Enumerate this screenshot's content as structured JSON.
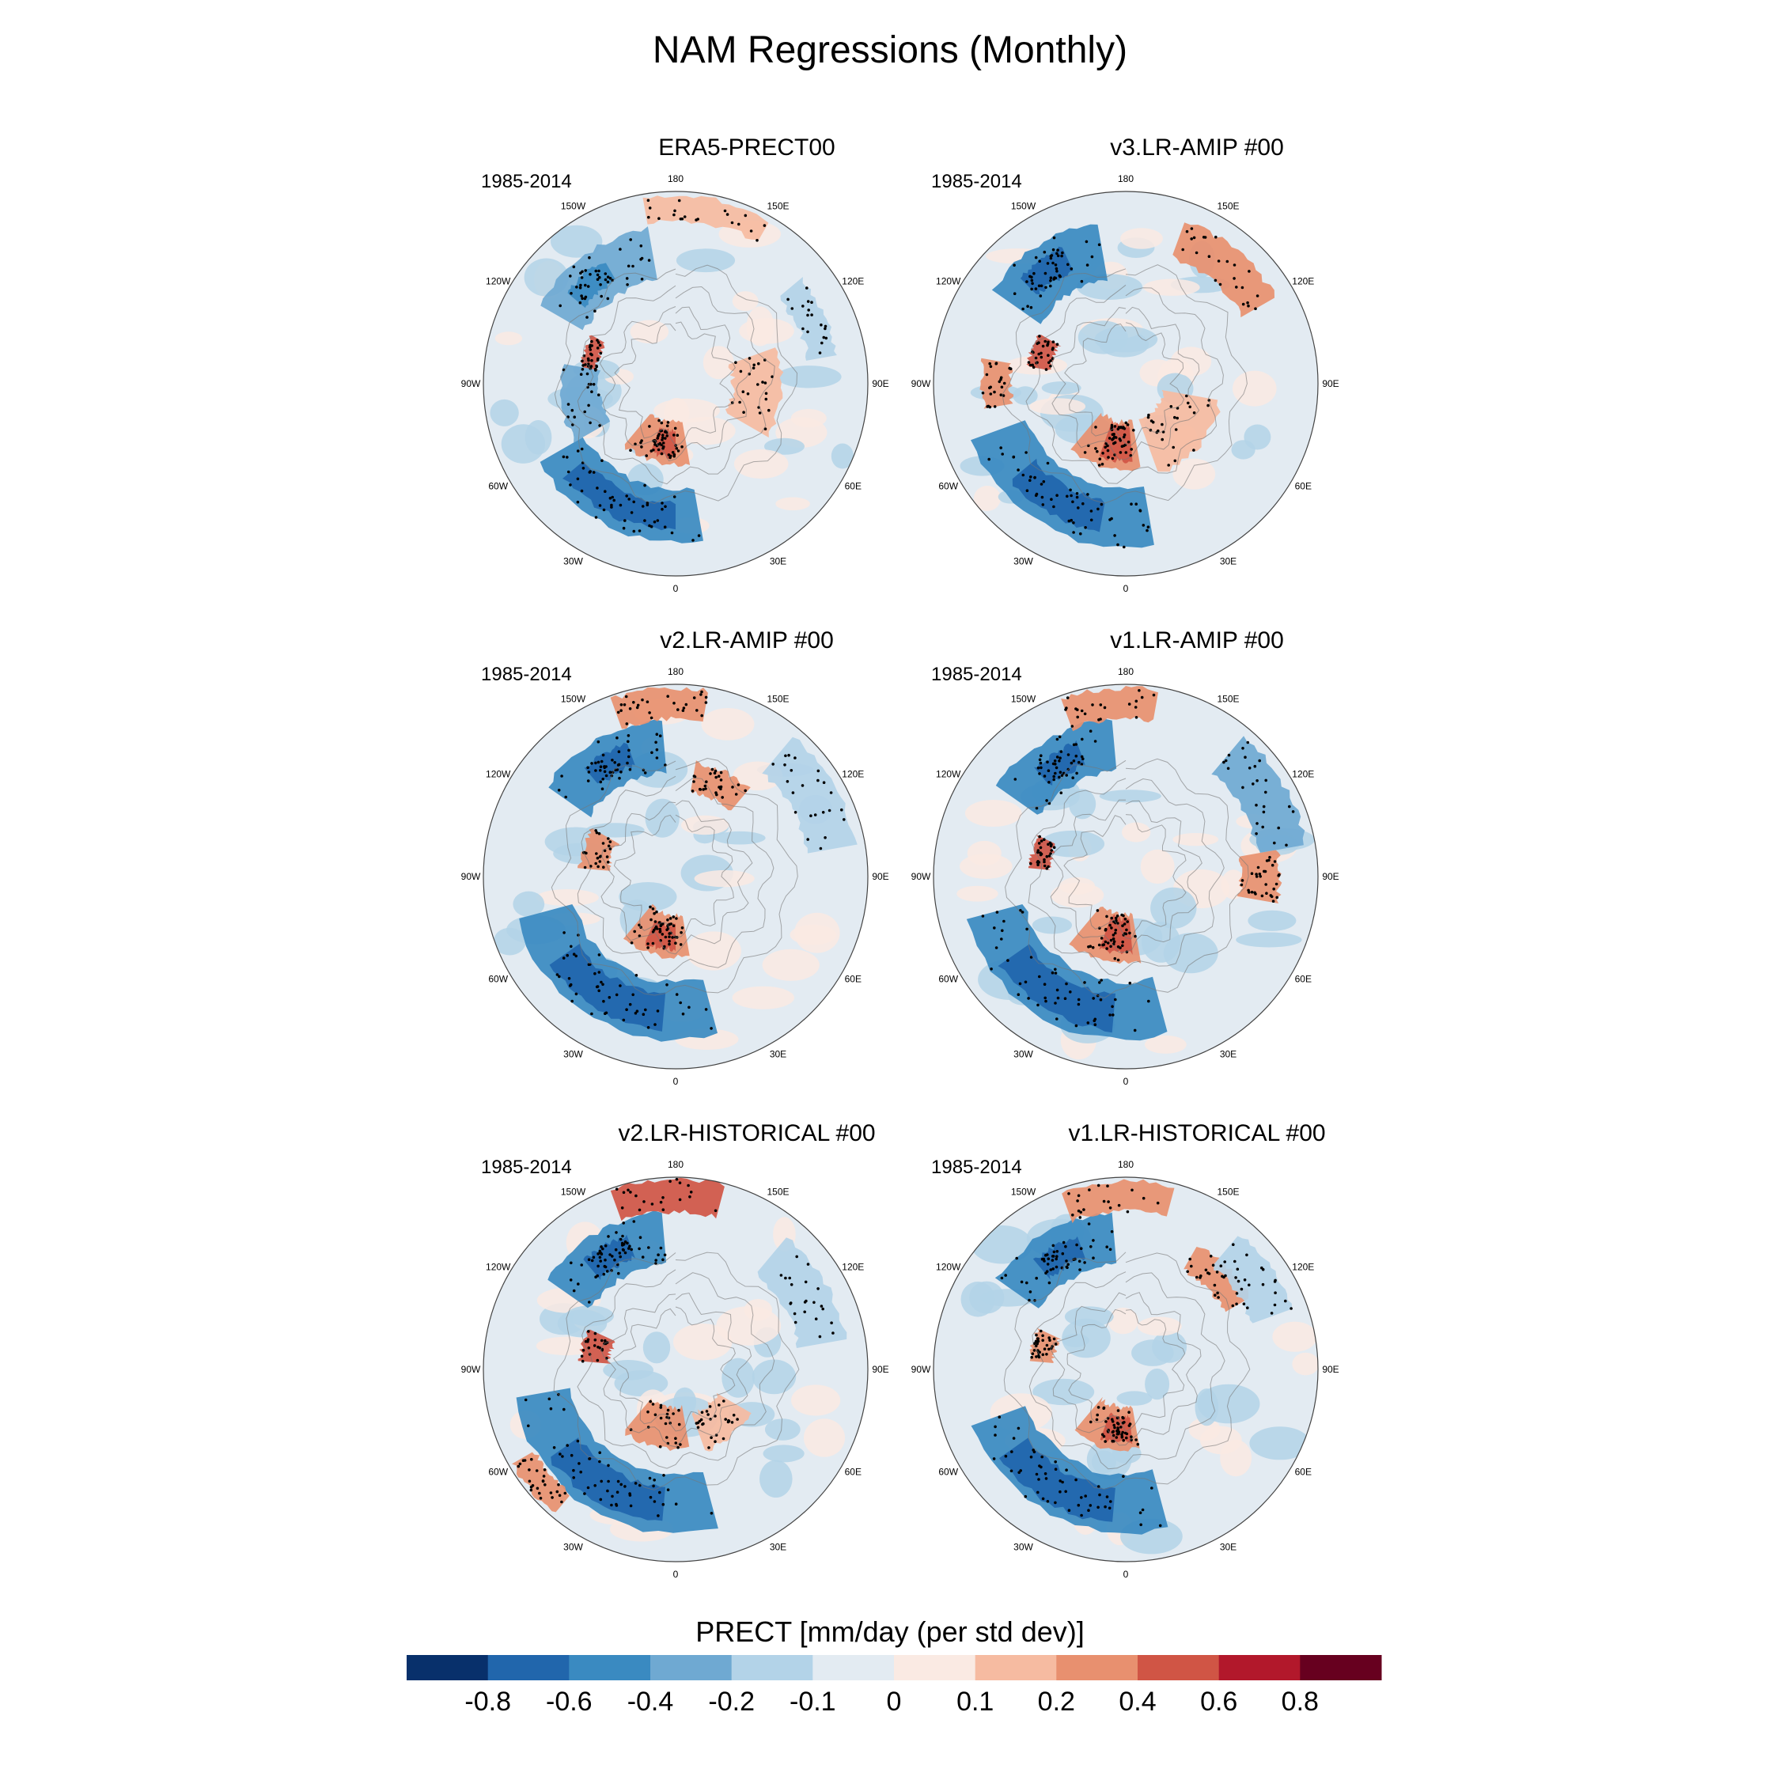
{
  "title": "NAM Regressions (Monthly)",
  "longitude_labels": [
    "180",
    "150E",
    "120E",
    "90E",
    "60E",
    "30E",
    "0",
    "30W",
    "60W",
    "90W",
    "120W",
    "150W"
  ],
  "panels": [
    {
      "title": "ERA5-PRECT00",
      "period": "1985-2014"
    },
    {
      "title": "v3.LR-AMIP  #00",
      "period": "1985-2014"
    },
    {
      "title": "v2.LR-AMIP  #00",
      "period": "1985-2014"
    },
    {
      "title": "v1.LR-AMIP  #00",
      "period": "1985-2014"
    },
    {
      "title": "v2.LR-HISTORICAL  #00",
      "period": "1985-2014"
    },
    {
      "title": "v1.LR-HISTORICAL  #00",
      "period": "1985-2014"
    }
  ],
  "colorbar": {
    "title": "PRECT [mm/day (per std dev)]",
    "tick_labels": [
      "-0.8",
      "-0.6",
      "-0.4",
      "-0.2",
      "-0.1",
      "0",
      "0.1",
      "0.2",
      "0.4",
      "0.6",
      "0.8"
    ],
    "colors": [
      "#08306b",
      "#2166ac",
      "#3a8ac1",
      "#6fa9d2",
      "#b3d3e8",
      "#e3ebf2",
      "#faeae3",
      "#f6bba1",
      "#e8906f",
      "#d05545",
      "#b2182b",
      "#67001f"
    ]
  }
}
